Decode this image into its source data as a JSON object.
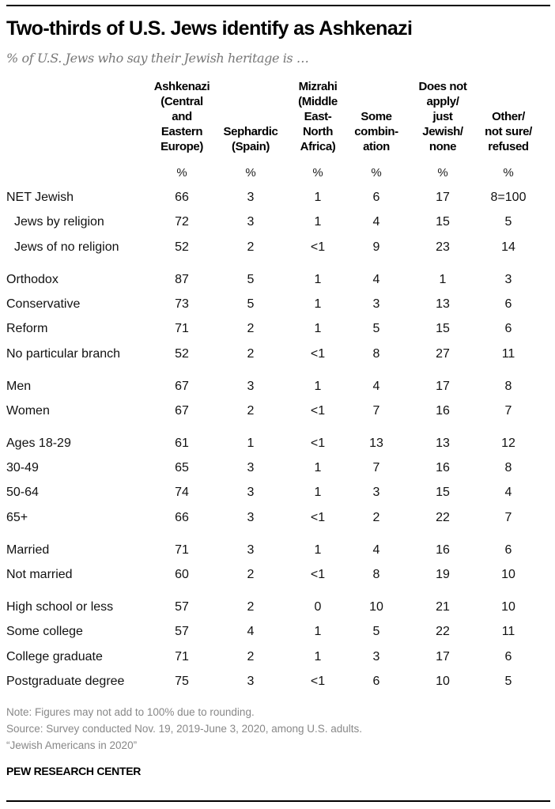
{
  "chart_data": {
    "type": "table",
    "title": "Two-thirds of U.S. Jews identify as Ashkenazi",
    "subtitle": "% of U.S. Jews who say their Jewish heritage is …",
    "columns": [
      "Ashkenazi\n(Central\nand\nEastern\nEurope)",
      "Sephardic\n(Spain)",
      "Mizrahi\n(Middle\nEast-\nNorth\nAfrica)",
      "Some\ncombin-\nation",
      "Does not\napply/\njust\nJewish/\nnone",
      "Other/\nnot sure/\nrefused"
    ],
    "unit_row": [
      "%",
      "%",
      "%",
      "%",
      "%",
      "%"
    ],
    "rows": [
      {
        "label": "NET Jewish",
        "indent": false,
        "group": 0,
        "values": [
          "66",
          "3",
          "1",
          "6",
          "17",
          "8=100"
        ]
      },
      {
        "label": "Jews by religion",
        "indent": true,
        "group": 0,
        "values": [
          "72",
          "3",
          "1",
          "4",
          "15",
          "5"
        ]
      },
      {
        "label": "Jews of no religion",
        "indent": true,
        "group": 0,
        "values": [
          "52",
          "2",
          "<1",
          "9",
          "23",
          "14"
        ]
      },
      {
        "label": "Orthodox",
        "indent": false,
        "group": 1,
        "values": [
          "87",
          "5",
          "1",
          "4",
          "1",
          "3"
        ]
      },
      {
        "label": "Conservative",
        "indent": false,
        "group": 1,
        "values": [
          "73",
          "5",
          "1",
          "3",
          "13",
          "6"
        ]
      },
      {
        "label": "Reform",
        "indent": false,
        "group": 1,
        "values": [
          "71",
          "2",
          "1",
          "5",
          "15",
          "6"
        ]
      },
      {
        "label": "No particular branch",
        "indent": false,
        "group": 1,
        "values": [
          "52",
          "2",
          "<1",
          "8",
          "27",
          "11"
        ]
      },
      {
        "label": "Men",
        "indent": false,
        "group": 2,
        "values": [
          "67",
          "3",
          "1",
          "4",
          "17",
          "8"
        ]
      },
      {
        "label": "Women",
        "indent": false,
        "group": 2,
        "values": [
          "67",
          "2",
          "<1",
          "7",
          "16",
          "7"
        ]
      },
      {
        "label": "Ages 18-29",
        "indent": false,
        "group": 3,
        "values": [
          "61",
          "1",
          "<1",
          "13",
          "13",
          "12"
        ]
      },
      {
        "label": "30-49",
        "indent": false,
        "group": 3,
        "values": [
          "65",
          "3",
          "1",
          "7",
          "16",
          "8"
        ]
      },
      {
        "label": "50-64",
        "indent": false,
        "group": 3,
        "values": [
          "74",
          "3",
          "1",
          "3",
          "15",
          "4"
        ]
      },
      {
        "label": "65+",
        "indent": false,
        "group": 3,
        "values": [
          "66",
          "3",
          "<1",
          "2",
          "22",
          "7"
        ]
      },
      {
        "label": "Married",
        "indent": false,
        "group": 4,
        "values": [
          "71",
          "3",
          "1",
          "4",
          "16",
          "6"
        ]
      },
      {
        "label": "Not married",
        "indent": false,
        "group": 4,
        "values": [
          "60",
          "2",
          "<1",
          "8",
          "19",
          "10"
        ]
      },
      {
        "label": "High school or less",
        "indent": false,
        "group": 5,
        "values": [
          "57",
          "2",
          "0",
          "10",
          "21",
          "10"
        ]
      },
      {
        "label": "Some college",
        "indent": false,
        "group": 5,
        "values": [
          "57",
          "4",
          "1",
          "5",
          "22",
          "11"
        ]
      },
      {
        "label": "College graduate",
        "indent": false,
        "group": 5,
        "values": [
          "71",
          "2",
          "1",
          "3",
          "17",
          "6"
        ]
      },
      {
        "label": "Postgraduate degree",
        "indent": false,
        "group": 5,
        "values": [
          "75",
          "3",
          "<1",
          "6",
          "10",
          "5"
        ]
      }
    ],
    "notes": [
      "Note: Figures may not add to 100% due to rounding.",
      "Source: Survey conducted Nov. 19, 2019-June 3, 2020, among U.S. adults.",
      "“Jewish Americans in 2020”"
    ],
    "brand": "PEW RESEARCH CENTER"
  }
}
